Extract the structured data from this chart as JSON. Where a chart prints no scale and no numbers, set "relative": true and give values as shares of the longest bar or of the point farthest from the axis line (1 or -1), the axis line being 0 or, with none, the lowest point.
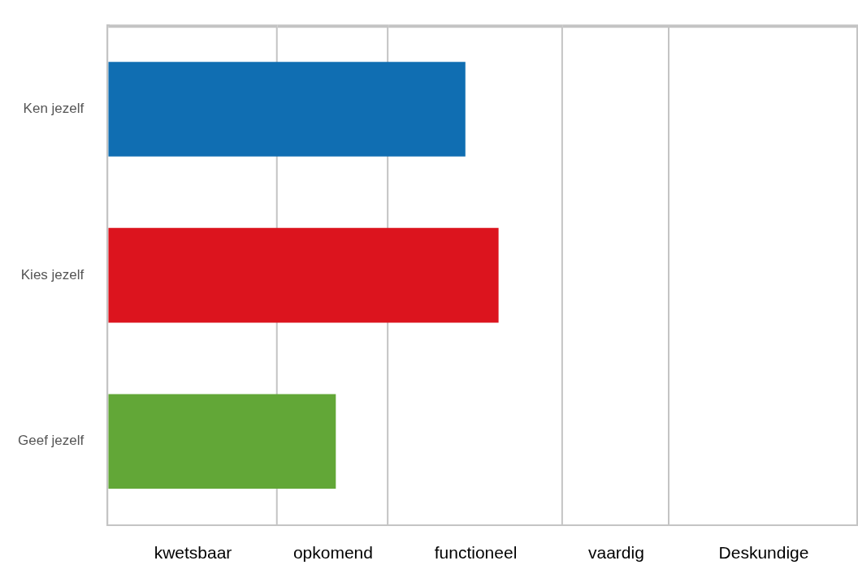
{
  "chart_data": {
    "type": "bar",
    "orientation": "horizontal",
    "relative": true,
    "categories": [
      "Ken jezelf",
      "Kies jezelf",
      "Geef jezelf"
    ],
    "values": [
      0.915,
      1,
      0.583
    ],
    "colors": [
      "#106eb2",
      "#dc141e",
      "#62a737"
    ],
    "bands": [
      {
        "axis": "x",
        "from": 0,
        "to": 0.434,
        "label": "kwetsbaar",
        "color": "#ffffff"
      },
      {
        "axis": "x",
        "from": 0.434,
        "to": 0.718,
        "label": "opkomend",
        "color": "#ffffff"
      },
      {
        "axis": "x",
        "from": 0.718,
        "to": 1.165,
        "label": "functioneel",
        "color": "#ffffff"
      },
      {
        "axis": "x",
        "from": 1.165,
        "to": 1.438,
        "label": "vaardig",
        "color": "#ffffff"
      },
      {
        "axis": "x",
        "from": 1.438,
        "to": 1.921,
        "label": "Deskundige",
        "color": "#ffffff"
      }
    ],
    "legend": false
  }
}
